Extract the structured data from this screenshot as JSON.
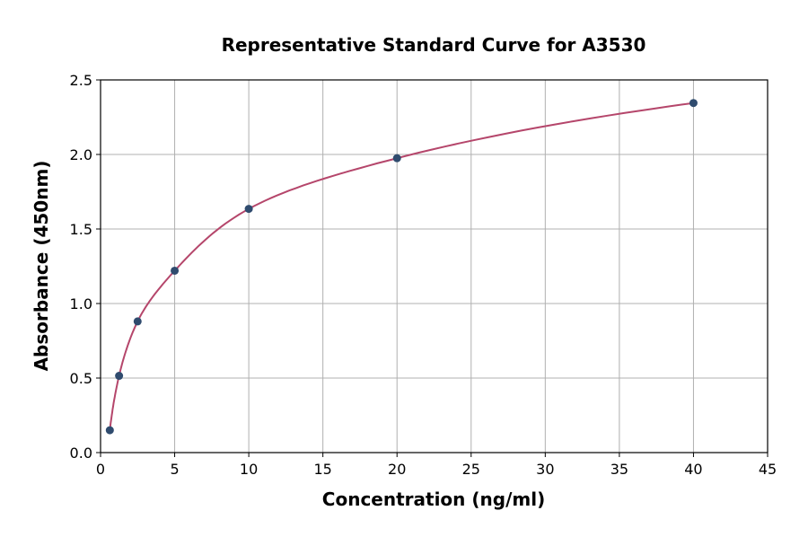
{
  "chart_data": {
    "type": "scatter",
    "title": "Representative Standard Curve for A3530",
    "xlabel": "Concentration (ng/ml)",
    "ylabel": "Absorbance (450nm)",
    "xlim": [
      0,
      45
    ],
    "ylim": [
      0,
      2.5
    ],
    "xticks": [
      0,
      5,
      10,
      15,
      20,
      25,
      30,
      35,
      40,
      45
    ],
    "yticks": [
      "0.0",
      "0.5",
      "1.0",
      "1.5",
      "2.0",
      "2.5"
    ],
    "grid": true,
    "points": {
      "x": [
        0.625,
        1.25,
        2.5,
        5,
        10,
        20,
        40
      ],
      "y": [
        0.15,
        0.515,
        0.88,
        1.22,
        1.635,
        1.975,
        2.345
      ]
    },
    "fit_curve": true,
    "colors": {
      "points": "#2f4b6e",
      "curve": "#b5466b",
      "grid": "#b0b0b0"
    }
  }
}
